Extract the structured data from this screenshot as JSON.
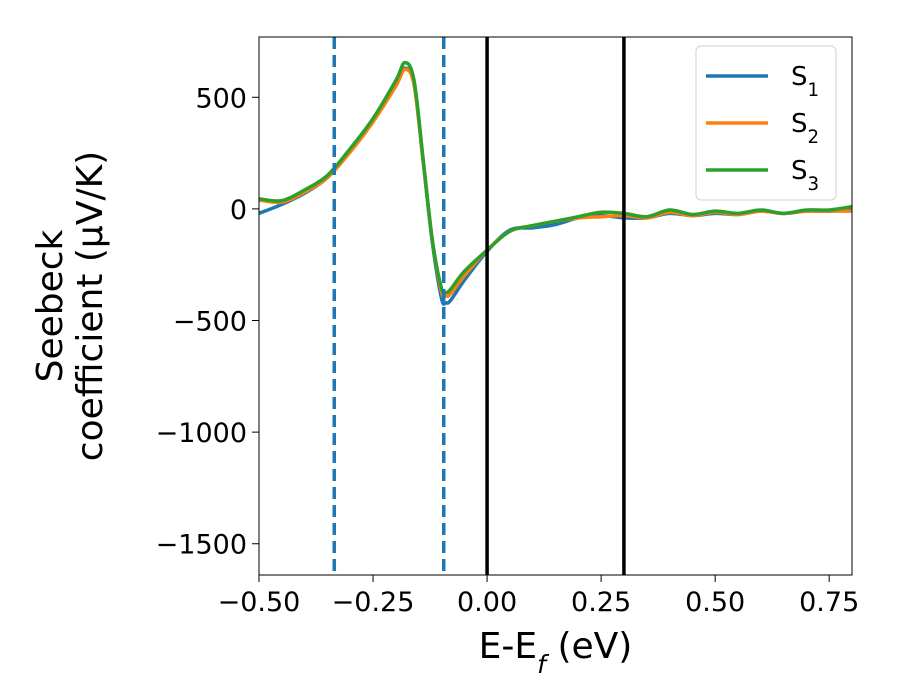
{
  "chart_data": {
    "type": "line",
    "x_label": "E-E_f (eV)",
    "y_label": [
      "Seebeck",
      "coefficient  (μV/K)"
    ],
    "x": [
      -0.5,
      -0.45,
      -0.4,
      -0.35,
      -0.3,
      -0.25,
      -0.2,
      -0.18,
      -0.16,
      -0.14,
      -0.12,
      -0.1,
      -0.09,
      -0.08,
      -0.05,
      0,
      0.05,
      0.1,
      0.15,
      0.2,
      0.25,
      0.3,
      0.35,
      0.4,
      0.45,
      0.5,
      0.55,
      0.6,
      0.65,
      0.7,
      0.75,
      0.8
    ],
    "series": [
      {
        "name": "S_1",
        "color": "#1f77b4",
        "values": [
          -20,
          20,
          70,
          140,
          260,
          400,
          560,
          630,
          560,
          210,
          -150,
          -400,
          -420,
          -410,
          -320,
          -190,
          -95,
          -85,
          -70,
          -40,
          -30,
          -40,
          -40,
          -20,
          -30,
          -20,
          -25,
          -10,
          -20,
          -10,
          -10,
          -5
        ]
      },
      {
        "name": "S_2",
        "color": "#ff7f0e",
        "values": [
          40,
          30,
          75,
          140,
          255,
          390,
          550,
          625,
          555,
          210,
          -140,
          -370,
          -390,
          -380,
          -300,
          -185,
          -100,
          -75,
          -55,
          -40,
          -35,
          -30,
          -40,
          -15,
          -30,
          -15,
          -25,
          -10,
          -20,
          -10,
          -10,
          -10
        ]
      },
      {
        "name": "S_3",
        "color": "#2ca02c",
        "values": [
          45,
          37,
          85,
          150,
          270,
          405,
          575,
          655,
          575,
          220,
          -140,
          -355,
          -375,
          -360,
          -280,
          -185,
          -100,
          -75,
          -55,
          -35,
          -15,
          -20,
          -35,
          -5,
          -25,
          -10,
          -20,
          -5,
          -20,
          -5,
          -5,
          10
        ]
      }
    ],
    "vlines": [
      {
        "x": -0.335,
        "color": "#1f77b4",
        "style": "dashed"
      },
      {
        "x": -0.095,
        "color": "#1f77b4",
        "style": "dashed"
      },
      {
        "x": 0,
        "color": "#000000",
        "style": "solid"
      },
      {
        "x": 0.3,
        "color": "#000000",
        "style": "solid"
      }
    ],
    "xlim": [
      -0.5,
      0.8
    ],
    "xticks": [
      {
        "value": -0.5,
        "label": "−0.50"
      },
      {
        "value": -0.25,
        "label": "−0.25"
      },
      {
        "value": 0,
        "label": "0.00"
      },
      {
        "value": 0.25,
        "label": "0.25"
      },
      {
        "value": 0.5,
        "label": "0.50"
      },
      {
        "value": 0.75,
        "label": "0.75"
      }
    ],
    "ylim": [
      -1640,
      770
    ],
    "yticks": [
      {
        "value": -1500,
        "label": "−1500"
      },
      {
        "value": -1000,
        "label": "−1000"
      },
      {
        "value": -500,
        "label": "−500"
      },
      0,
      500
    ],
    "legend": "upper right",
    "grid": false
  }
}
